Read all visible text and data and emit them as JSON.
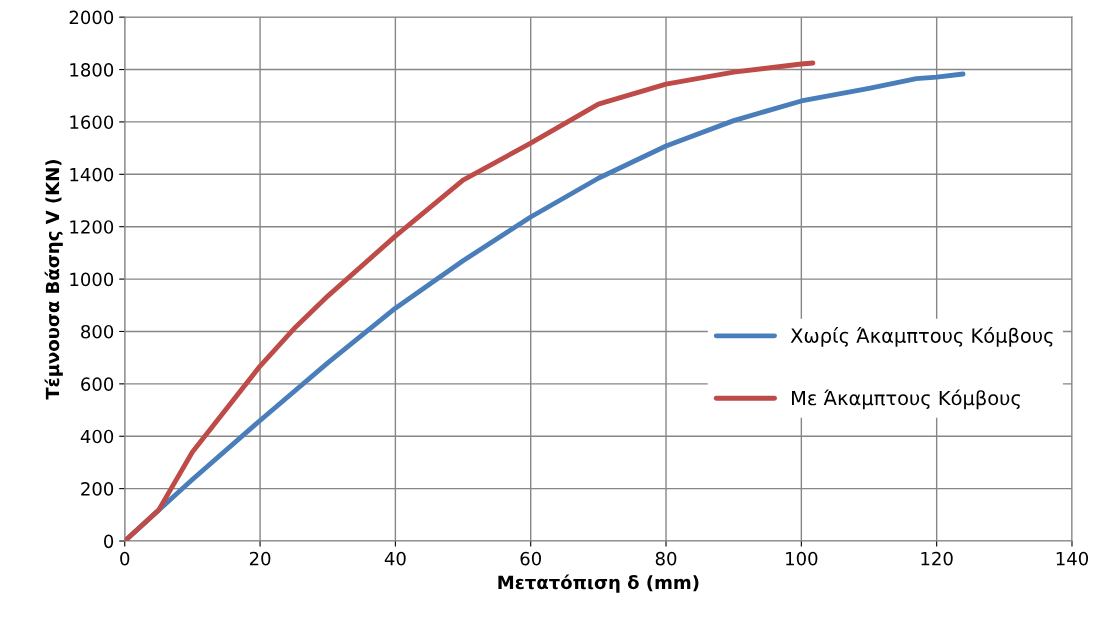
{
  "chart_data": {
    "type": "line",
    "xlabel": "Μετατόπιση δ (mm)",
    "ylabel": "Τέμνουσα Βάσης V (KN)",
    "xlim": [
      0,
      140
    ],
    "xticks": [
      0,
      20,
      40,
      60,
      80,
      100,
      120,
      140
    ],
    "ylim": [
      0,
      2000
    ],
    "yticks": [
      0,
      200,
      400,
      600,
      800,
      1000,
      1200,
      1400,
      1600,
      1800,
      2000
    ],
    "grid": true,
    "legend": "right",
    "marker": "none",
    "line_style": "solid",
    "series": [
      {
        "name": "Χωρίς Άκαμπτους Κόμβους",
        "color": "#4a7ebb",
        "x": [
          0,
          10,
          20,
          30,
          40,
          50,
          60,
          70,
          80,
          90,
          100,
          110,
          117,
          120,
          123.9
        ],
        "values": [
          0,
          235,
          460,
          680,
          889,
          1070,
          1237,
          1385,
          1508,
          1605,
          1680,
          1728,
          1765,
          1771,
          1783
        ]
      },
      {
        "name": "Με Άκαμπτους Κόμβους",
        "color": "#be4b48",
        "x": [
          0,
          5,
          10,
          20,
          25,
          30,
          40,
          50,
          60,
          70,
          80,
          90,
          100,
          101.7
        ],
        "values": [
          0,
          118,
          340,
          668,
          810,
          935,
          1164,
          1378,
          1519,
          1668,
          1744,
          1790,
          1821,
          1825
        ]
      }
    ]
  }
}
